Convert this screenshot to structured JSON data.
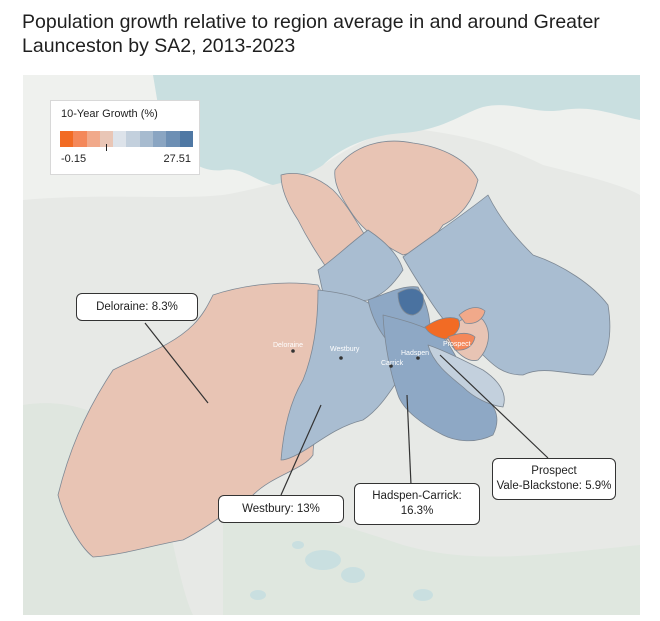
{
  "title_line1": "Population growth relative to region average in and around Greater",
  "title_line2": "Launceston by SA2, 2013-2023",
  "legend": {
    "title": "10-Year Growth (%)",
    "min": "-0.15",
    "max": "27.51",
    "colors": [
      "#f26b24",
      "#f4885a",
      "#f1a98a",
      "#e9c6b6",
      "#dde3ea",
      "#c3d0dd",
      "#a7bbcf",
      "#8aa5c2",
      "#6d8fb4",
      "#4f78a4"
    ]
  },
  "map_labels": {
    "deloraine": "Deloraine",
    "westbury": "Westbury",
    "hadspen": "Hadspen",
    "carrick": "Carrick",
    "prospect": "Prospect"
  },
  "callouts": {
    "deloraine": "Deloraine: 8.3%",
    "westbury": "Westbury: 13%",
    "hadspen_line1": "Hadspen-Carrick:",
    "hadspen_line2": "16.3%",
    "prospect_line1": "Prospect",
    "prospect_line2": "Vale-Blackstone: 5.9%"
  },
  "growth_values_pct": {
    "Deloraine": 8.3,
    "Westbury": 13,
    "Hadspen-Carrick": 16.3,
    "Prospect Vale-Blackstone": 5.9
  },
  "colors": {
    "low_region": "#e8c4b4",
    "mid_region": "#a9bdd1",
    "high_region": "#8ea8c5",
    "max_region": "#4a72a0",
    "min_region": "#f26b24",
    "background_land": "#e6e8e5",
    "water": "#c9dfe0"
  }
}
